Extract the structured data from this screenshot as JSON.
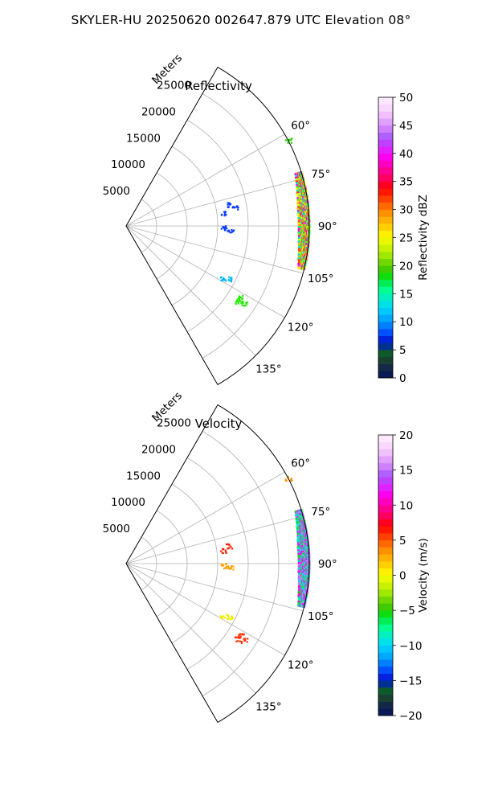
{
  "page_title": "SKYLER-HU  20250620  002647.879 UTC Elevation 08°",
  "chart_data": [
    {
      "type": "polar-sector-ppi",
      "title": "Reflectivity",
      "radial_unit_label": "Meters",
      "theta_range_deg": [
        30,
        150
      ],
      "r_max_m": 30000,
      "radial_ticks": [
        5000,
        10000,
        15000,
        20000,
        25000
      ],
      "radial_tick_labels": [
        "5000",
        "10000",
        "15000",
        "20000",
        "25000"
      ],
      "angle_ticks_deg": [
        60,
        75,
        90,
        105,
        120,
        135
      ],
      "angle_tick_labels": [
        "60°",
        "75°",
        "90°",
        "105°",
        "120°",
        "135°"
      ],
      "grid": true,
      "colorbar": {
        "label": "Reflectivity dBZ",
        "min": 0,
        "max": 50,
        "ticks": [
          0,
          5,
          10,
          15,
          20,
          25,
          30,
          35,
          40,
          45,
          50
        ],
        "tick_labels": [
          "0",
          "5",
          "10",
          "15",
          "20",
          "25",
          "30",
          "35",
          "40",
          "45",
          "50"
        ],
        "colors": [
          "#0a1a55",
          "#15284a",
          "#1a4030",
          "#0d5a2a",
          "#00308f",
          "#0022dd",
          "#0050ff",
          "#0080ff",
          "#00a8ff",
          "#00c8ff",
          "#00e0e8",
          "#00f0c0",
          "#00ff90",
          "#00ee55",
          "#10dd10",
          "#40cc00",
          "#70d800",
          "#a0e800",
          "#c8f000",
          "#e8f800",
          "#fff000",
          "#ffd000",
          "#ffb000",
          "#ff9000",
          "#ff6a00",
          "#ff4000",
          "#ff1800",
          "#ff0020",
          "#ff0060",
          "#ff0090",
          "#ff00c0",
          "#ff00ee",
          "#e020ff",
          "#c040ff",
          "#b060ff",
          "#d080ff",
          "#e0a0ff",
          "#f0c0ff",
          "#f8d8ff",
          "#fde8ff"
        ]
      },
      "echoes": [
        {
          "type": "blob",
          "color": "#0a3cff",
          "points": [
            [
              16,
              82
            ],
            [
              18,
              80
            ],
            [
              17,
              78
            ]
          ]
        },
        {
          "type": "blob",
          "color": "#0a3cff",
          "points": [
            [
              16,
              91
            ],
            [
              17,
              92
            ]
          ]
        },
        {
          "type": "blob",
          "color": "#00b8ff",
          "points": [
            [
              18,
              118
            ],
            [
              19,
              117
            ]
          ]
        },
        {
          "type": "blob",
          "color": "#22ee00",
          "points": [
            [
              22,
              124
            ],
            [
              23,
              123
            ],
            [
              22,
              122
            ]
          ]
        },
        {
          "type": "blob",
          "color": "#22cc00",
          "points": [
            [
              30,
              62
            ]
          ]
        },
        {
          "type": "field",
          "name": "main",
          "r_range_m": [
            28200,
            30000
          ],
          "theta_range_deg": [
            73,
            104
          ],
          "palette": [
            "#00ff90",
            "#44ee00",
            "#99ee00",
            "#ddf800",
            "#ffee00",
            "#ffb000",
            "#ff4000",
            "#ff00c0",
            "#e020ff",
            "#00e0e8"
          ]
        }
      ]
    },
    {
      "type": "polar-sector-ppi",
      "title": "Velocity",
      "radial_unit_label": "Meters",
      "theta_range_deg": [
        30,
        150
      ],
      "r_max_m": 30000,
      "radial_ticks": [
        5000,
        10000,
        15000,
        20000,
        25000
      ],
      "radial_tick_labels": [
        "5000",
        "10000",
        "15000",
        "20000",
        "25000"
      ],
      "angle_ticks_deg": [
        60,
        75,
        90,
        105,
        120,
        135
      ],
      "angle_tick_labels": [
        "60°",
        "75°",
        "90°",
        "105°",
        "120°",
        "135°"
      ],
      "grid": true,
      "colorbar": {
        "label": "Velocity (m/s)",
        "min": -20,
        "max": 20,
        "ticks": [
          -20,
          -15,
          -10,
          -5,
          0,
          5,
          10,
          15,
          20
        ],
        "tick_labels": [
          "−20",
          "−15",
          "−10",
          "−5",
          "0",
          "5",
          "10",
          "15",
          "20"
        ],
        "colors": [
          "#0a1a55",
          "#15284a",
          "#1a4030",
          "#0d5a2a",
          "#00308f",
          "#0022dd",
          "#0050ff",
          "#0080ff",
          "#00a8ff",
          "#00c8ff",
          "#00e0e8",
          "#00f0c0",
          "#00ff90",
          "#00ee55",
          "#10dd10",
          "#40cc00",
          "#70d800",
          "#a0e800",
          "#c8f000",
          "#e8f800",
          "#fff000",
          "#ffd000",
          "#ffb000",
          "#ff9000",
          "#ff6a00",
          "#ff4000",
          "#ff1800",
          "#ff0020",
          "#ff0060",
          "#ff0090",
          "#ff00c0",
          "#ff00ee",
          "#e020ff",
          "#c040ff",
          "#b060ff",
          "#d080ff",
          "#e0a0ff",
          "#f0c0ff",
          "#f8d8ff",
          "#fde8ff"
        ]
      },
      "echoes": [
        {
          "type": "blob",
          "color": "#ff2000",
          "points": [
            [
              16,
              82
            ],
            [
              17,
              80
            ]
          ]
        },
        {
          "type": "blob",
          "color": "#ffa000",
          "points": [
            [
              16,
              91
            ],
            [
              17,
              92
            ]
          ]
        },
        {
          "type": "blob",
          "color": "#eeee00",
          "points": [
            [
              18,
              118
            ],
            [
              19,
              117
            ]
          ]
        },
        {
          "type": "blob",
          "color": "#ff3000",
          "points": [
            [
              22,
              124
            ],
            [
              23,
              123
            ],
            [
              22,
              122
            ]
          ]
        },
        {
          "type": "blob",
          "color": "#ff9000",
          "points": [
            [
              30,
              62
            ]
          ]
        },
        {
          "type": "field",
          "name": "main",
          "r_range_m": [
            28200,
            30000
          ],
          "theta_range_deg": [
            73,
            104
          ],
          "palette": [
            "#00f0e8",
            "#00e0c0",
            "#c040ff",
            "#b060ff",
            "#e020ff",
            "#d080ff",
            "#10dd10",
            "#00ff90",
            "#ff00ee"
          ]
        }
      ]
    }
  ]
}
